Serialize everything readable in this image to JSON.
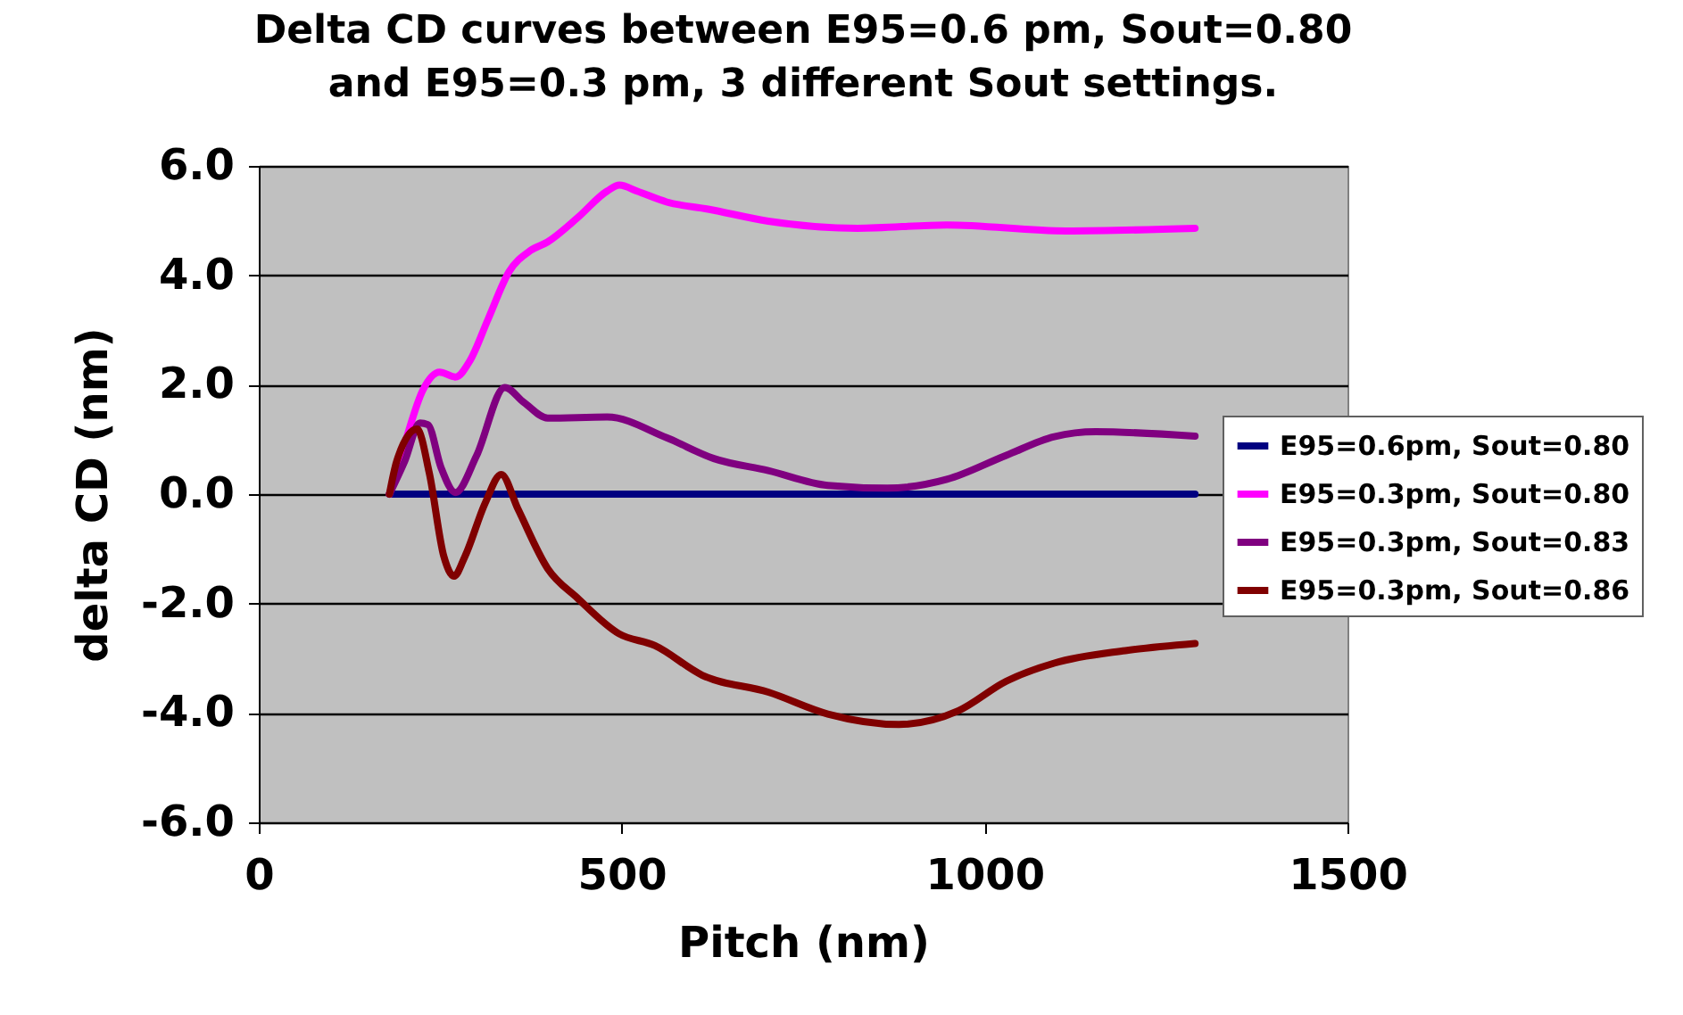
{
  "chart_data": {
    "type": "line",
    "title": "Delta CD curves between E95=0.6 pm, Sout=0.80\nand E95=0.3 pm, 3 different Sout settings.",
    "xlabel": "Pitch (nm)",
    "ylabel": "delta CD (nm)",
    "xlim": [
      0,
      1500
    ],
    "xticks": [
      0,
      500,
      1000,
      1500
    ],
    "ylim": [
      -6,
      6
    ],
    "yticks": [
      {
        "value": -6,
        "label": "-6.0"
      },
      {
        "value": -4,
        "label": "-4.0"
      },
      {
        "value": -2,
        "label": "-2.0"
      },
      {
        "value": 0,
        "label": "0.0"
      },
      {
        "value": 2,
        "label": "2.0"
      },
      {
        "value": 4,
        "label": "4.0"
      },
      {
        "value": 6,
        "label": "6.0"
      }
    ],
    "grid": "y",
    "legend": "right",
    "marker": "none",
    "line_style": "solid",
    "series": [
      {
        "name": "E95=0.6pm, Sout=0.80",
        "color": "#000080",
        "x": [
          180,
          1290
        ],
        "values": [
          0,
          0
        ]
      },
      {
        "name": "E95=0.3pm, Sout=0.80",
        "color": "#ff00ff",
        "x": [
          180,
          201,
          226,
          249,
          271,
          291,
          316,
          345,
          374,
          398,
          439,
          480,
          497,
          521,
          562,
          619,
          702,
          825,
          948,
          1112,
          1290
        ],
        "values": [
          0,
          0.92,
          1.9,
          2.23,
          2.14,
          2.44,
          3.2,
          4.07,
          4.45,
          4.61,
          5.05,
          5.54,
          5.65,
          5.54,
          5.34,
          5.21,
          4.99,
          4.86,
          4.92,
          4.81,
          4.86
        ]
      },
      {
        "name": "E95=0.3pm, Sout=0.83",
        "color": "#800080",
        "x": [
          180,
          201,
          222,
          233,
          251,
          271,
          300,
          339,
          365,
          398,
          480,
          562,
          627,
          702,
          784,
          866,
          948,
          1030,
          1096,
          1153,
          1290
        ],
        "values": [
          0,
          0.6,
          1.3,
          1.27,
          0.49,
          0.03,
          0.7,
          1.95,
          1.68,
          1.39,
          1.41,
          1.03,
          0.65,
          0.43,
          0.16,
          0.11,
          0.27,
          0.71,
          1.05,
          1.14,
          1.06
        ]
      },
      {
        "name": "E95=0.3pm, Sout=0.86",
        "color": "#800000",
        "x": [
          180,
          190,
          218,
          235,
          255,
          269,
          284,
          312,
          334,
          357,
          398,
          439,
          496,
          546,
          611,
          702,
          784,
          882,
          964,
          1030,
          1096,
          1194,
          1290
        ],
        "values": [
          0,
          0.6,
          1.19,
          0.38,
          -1.14,
          -1.5,
          -1.14,
          -0.16,
          0.36,
          -0.27,
          -1.36,
          -1.9,
          -2.55,
          -2.77,
          -3.31,
          -3.62,
          -4.02,
          -4.21,
          -3.96,
          -3.42,
          -3.09,
          -2.86,
          -2.73
        ]
      }
    ]
  }
}
